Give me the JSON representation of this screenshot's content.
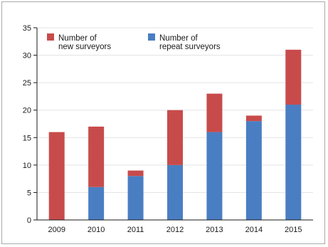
{
  "chart_data": {
    "type": "bar",
    "stacked": true,
    "categories": [
      "2009",
      "2010",
      "2011",
      "2012",
      "2013",
      "2014",
      "2015"
    ],
    "series": [
      {
        "name": "Number of repeat surveyors",
        "legend_lines": [
          "Number of",
          "repeat surveyors"
        ],
        "color": "#4a7ec2",
        "values": [
          0,
          6,
          8,
          10,
          16,
          18,
          21
        ]
      },
      {
        "name": "Number of new surveyors",
        "legend_lines": [
          "Number of",
          "new surveyors"
        ],
        "color": "#c84b4b",
        "values": [
          16,
          11,
          1,
          10,
          7,
          1,
          10
        ]
      }
    ],
    "title": "",
    "xlabel": "",
    "ylabel": "",
    "ylim": [
      0,
      35
    ],
    "yticks": [
      "0",
      "5",
      "10",
      "15",
      "20",
      "25",
      "30",
      "35"
    ],
    "grid": true,
    "legend_position": "top-left"
  }
}
